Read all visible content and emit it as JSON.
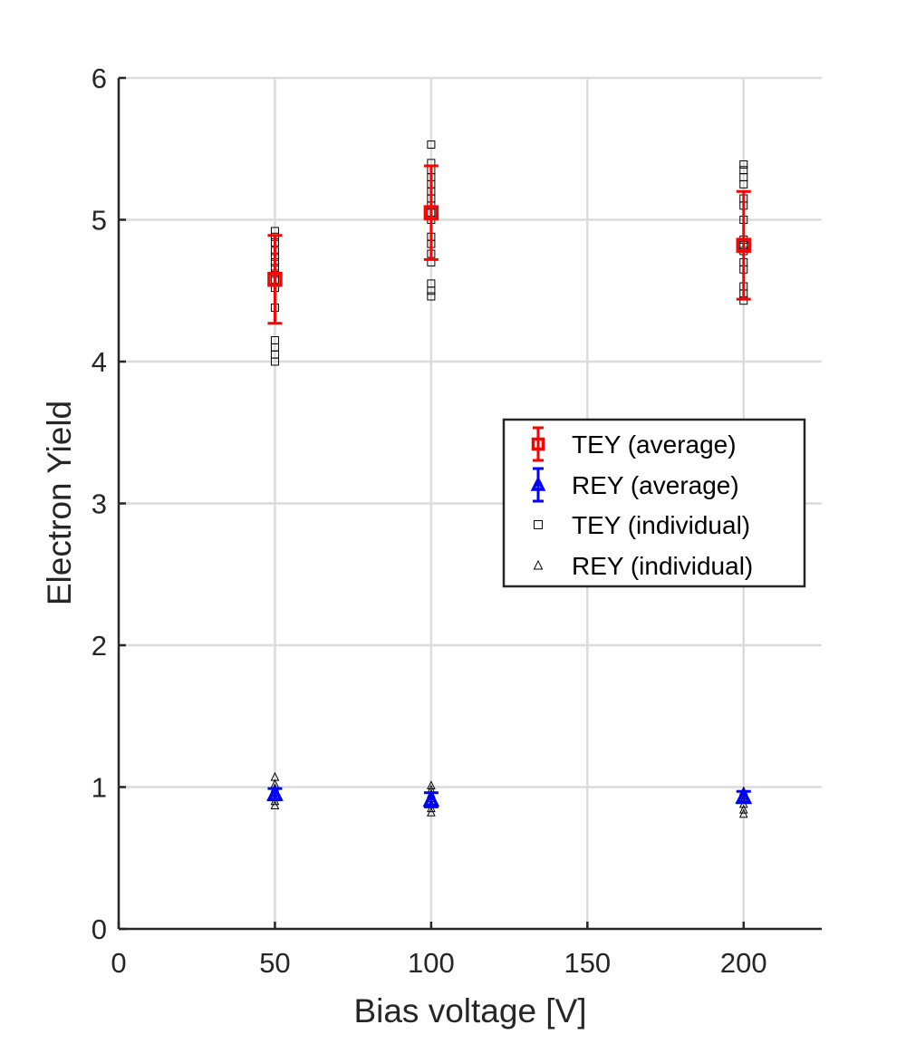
{
  "chart_data": {
    "type": "scatter",
    "title": "",
    "xlabel": "Bias voltage [V]",
    "ylabel": "Electron Yield",
    "xlim": [
      0,
      225
    ],
    "ylim": [
      0,
      6
    ],
    "xticks": [
      0,
      50,
      100,
      150,
      200
    ],
    "yticks": [
      0,
      1,
      2,
      3,
      4,
      5,
      6
    ],
    "grid": true,
    "legend_position": "right-middle",
    "series": [
      {
        "name": "TEY (average)",
        "marker": "square",
        "color": "#ff0000",
        "error_bars": true,
        "points": [
          {
            "x": 50,
            "y": 4.58,
            "err": 0.31
          },
          {
            "x": 100,
            "y": 5.05,
            "err": 0.33
          },
          {
            "x": 200,
            "y": 4.82,
            "err": 0.38
          }
        ]
      },
      {
        "name": "REY (average)",
        "marker": "triangle",
        "color": "#0000ff",
        "error_bars": true,
        "points": [
          {
            "x": 50,
            "y": 0.95,
            "err": 0.04
          },
          {
            "x": 100,
            "y": 0.91,
            "err": 0.05
          },
          {
            "x": 200,
            "y": 0.93,
            "err": 0.04
          }
        ]
      },
      {
        "name": "TEY (individual)",
        "marker": "square",
        "color": "#000000",
        "points": [
          {
            "x": 50,
            "y": 4.0
          },
          {
            "x": 50,
            "y": 4.05
          },
          {
            "x": 50,
            "y": 4.1
          },
          {
            "x": 50,
            "y": 4.15
          },
          {
            "x": 50,
            "y": 4.38
          },
          {
            "x": 50,
            "y": 4.52
          },
          {
            "x": 50,
            "y": 4.58
          },
          {
            "x": 50,
            "y": 4.62
          },
          {
            "x": 50,
            "y": 4.66
          },
          {
            "x": 50,
            "y": 4.7
          },
          {
            "x": 50,
            "y": 4.74
          },
          {
            "x": 50,
            "y": 4.78
          },
          {
            "x": 50,
            "y": 4.84
          },
          {
            "x": 50,
            "y": 4.88
          },
          {
            "x": 50,
            "y": 4.92
          },
          {
            "x": 100,
            "y": 4.46
          },
          {
            "x": 100,
            "y": 4.5
          },
          {
            "x": 100,
            "y": 4.55
          },
          {
            "x": 100,
            "y": 4.7
          },
          {
            "x": 100,
            "y": 4.76
          },
          {
            "x": 100,
            "y": 4.83
          },
          {
            "x": 100,
            "y": 4.88
          },
          {
            "x": 100,
            "y": 5.0
          },
          {
            "x": 100,
            "y": 5.05
          },
          {
            "x": 100,
            "y": 5.1
          },
          {
            "x": 100,
            "y": 5.15
          },
          {
            "x": 100,
            "y": 5.2
          },
          {
            "x": 100,
            "y": 5.25
          },
          {
            "x": 100,
            "y": 5.3
          },
          {
            "x": 100,
            "y": 5.35
          },
          {
            "x": 100,
            "y": 5.4
          },
          {
            "x": 100,
            "y": 5.53
          },
          {
            "x": 200,
            "y": 4.43
          },
          {
            "x": 200,
            "y": 4.48
          },
          {
            "x": 200,
            "y": 4.53
          },
          {
            "x": 200,
            "y": 4.65
          },
          {
            "x": 200,
            "y": 4.7
          },
          {
            "x": 200,
            "y": 4.78
          },
          {
            "x": 200,
            "y": 4.82
          },
          {
            "x": 200,
            "y": 4.86
          },
          {
            "x": 200,
            "y": 5.0
          },
          {
            "x": 200,
            "y": 5.1
          },
          {
            "x": 200,
            "y": 5.15
          },
          {
            "x": 200,
            "y": 5.25
          },
          {
            "x": 200,
            "y": 5.3
          },
          {
            "x": 200,
            "y": 5.35
          },
          {
            "x": 200,
            "y": 5.39
          }
        ]
      },
      {
        "name": "REY (individual)",
        "marker": "triangle",
        "color": "#000000",
        "points": [
          {
            "x": 50,
            "y": 0.87
          },
          {
            "x": 50,
            "y": 0.9
          },
          {
            "x": 50,
            "y": 0.93
          },
          {
            "x": 50,
            "y": 0.96
          },
          {
            "x": 50,
            "y": 0.99
          },
          {
            "x": 50,
            "y": 1.02
          },
          {
            "x": 50,
            "y": 1.07
          },
          {
            "x": 100,
            "y": 0.82
          },
          {
            "x": 100,
            "y": 0.85
          },
          {
            "x": 100,
            "y": 0.88
          },
          {
            "x": 100,
            "y": 0.92
          },
          {
            "x": 100,
            "y": 0.95
          },
          {
            "x": 100,
            "y": 0.98
          },
          {
            "x": 100,
            "y": 1.01
          },
          {
            "x": 200,
            "y": 0.81
          },
          {
            "x": 200,
            "y": 0.84
          },
          {
            "x": 200,
            "y": 0.88
          },
          {
            "x": 200,
            "y": 0.91
          },
          {
            "x": 200,
            "y": 0.94
          },
          {
            "x": 200,
            "y": 0.97
          }
        ]
      }
    ]
  }
}
